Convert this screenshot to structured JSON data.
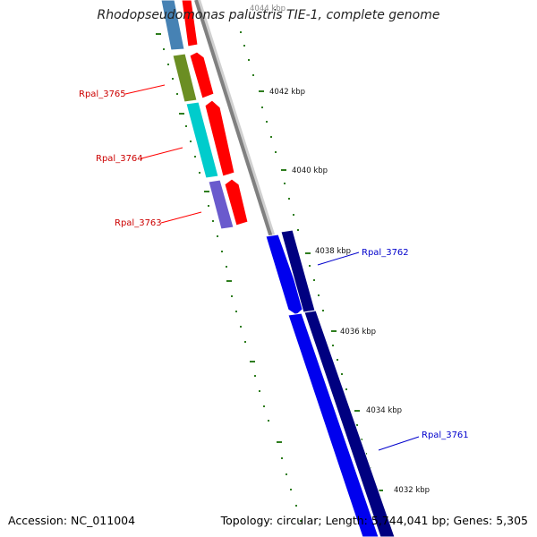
{
  "title": "Rhodopseudomonas palustris TIE-1, complete genome",
  "footer": {
    "accession": "Accession: NC_011004",
    "summary": "Topology: circular; Length: 5,744,041 bp; Genes: 5,305"
  },
  "colors": {
    "backbone": "#808080",
    "tick": "#2e7d1e",
    "forward_label": "#cc0000",
    "reverse_label": "#0000cc",
    "forward_cds": "#ff0000",
    "reverse_cds_light": "#0000ee",
    "reverse_cds_dark": "#000080"
  },
  "scale_labels": [
    "4044 kbp",
    "4042 kbp",
    "4040 kbp",
    "4038 kbp",
    "4036 kbp",
    "4034 kbp",
    "4032 kbp"
  ],
  "genes": {
    "rpal_3765": "Rpal_3765",
    "rpal_3764": "Rpal_3764",
    "rpal_3763": "Rpal_3763",
    "rpal_3762": "Rpal_3762",
    "rpal_3761": "Rpal_3761"
  }
}
